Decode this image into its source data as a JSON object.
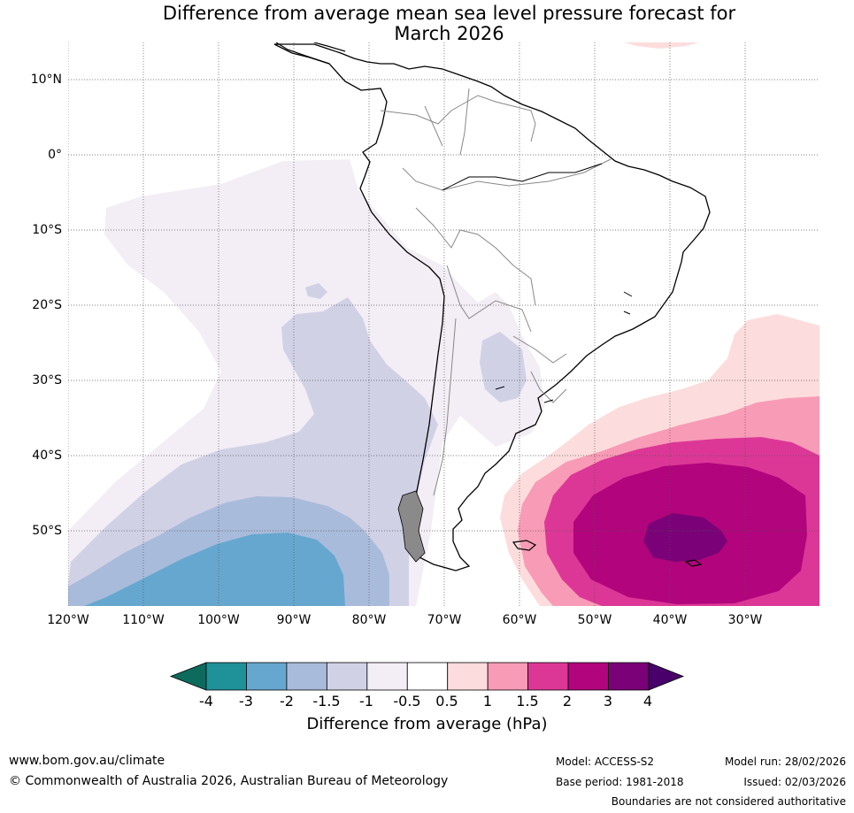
{
  "title": {
    "line1": "Difference from average mean sea level pressure forecast for",
    "line2": "March 2026"
  },
  "map": {
    "region": "South America",
    "lat_labels": [
      "10°N",
      "0°",
      "10°S",
      "20°S",
      "30°S",
      "40°S",
      "50°S"
    ],
    "lon_labels": [
      "120°W",
      "110°W",
      "100°W",
      "90°W",
      "80°W",
      "70°W",
      "60°W",
      "50°W",
      "40°W",
      "30°W"
    ],
    "extent": {
      "lon_min": -120,
      "lon_max": -20,
      "lat_min": -60,
      "lat_max": 15
    }
  },
  "colorbar": {
    "title": "Difference from average (hPa)",
    "ticks": [
      "-4",
      "-3",
      "-2",
      "-1.5",
      "-1",
      "-0.5",
      "0.5",
      "1",
      "1.5",
      "2",
      "3",
      "4"
    ],
    "colors": {
      "under": "#0d6b5e",
      "n4_3": "#1f9199",
      "n3_2": "#66a7cf",
      "n2_15": "#a9bbdb",
      "n15_1": "#d1d1e6",
      "n1_05": "#f3edf5",
      "zero": "#ffffff",
      "p05_1": "#fcdcdc",
      "p1_15": "#f89bb6",
      "p15_2": "#dc3796",
      "p2_3": "#b2047c",
      "p3_4": "#7a0177",
      "over": "#49006a"
    }
  },
  "footer": {
    "url": "www.bom.gov.au/climate",
    "copyright": "© Commonwealth of Australia 2026, Australian Bureau of Meteorology",
    "model": "Model: ACCESS-S2",
    "base_period": "Base period: 1981-2018",
    "model_run": "Model run: 28/02/2026",
    "issued": "Issued: 02/03/2026",
    "disclaimer": "Boundaries are not considered authoritative"
  }
}
